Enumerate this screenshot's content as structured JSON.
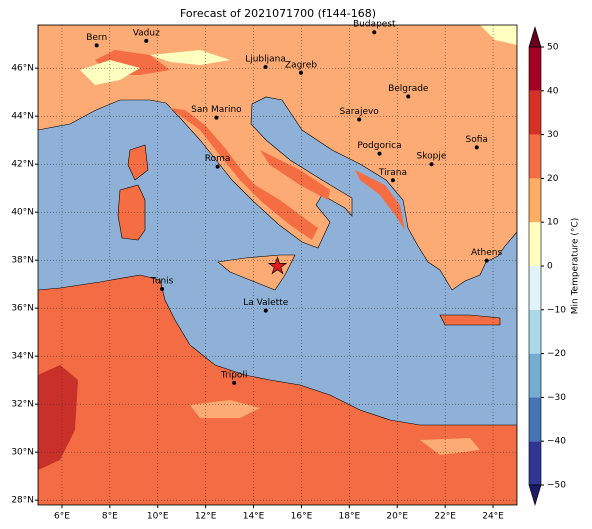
{
  "chart_data": {
    "type": "map",
    "title": "Forecast of 2021071700 (f144-168)",
    "xlim": [
      5,
      25
    ],
    "ylim": [
      27.8,
      47.8
    ],
    "xticks": [
      {
        "value": 6,
        "label": "6°E"
      },
      {
        "value": 8,
        "label": "8°E"
      },
      {
        "value": 10,
        "label": "10°E"
      },
      {
        "value": 12,
        "label": "12°E"
      },
      {
        "value": 14,
        "label": "14°E"
      },
      {
        "value": 16,
        "label": "16°E"
      },
      {
        "value": 18,
        "label": "18°E"
      },
      {
        "value": 20,
        "label": "20°E"
      },
      {
        "value": 22,
        "label": "22°E"
      },
      {
        "value": 24,
        "label": "24°E"
      }
    ],
    "yticks": [
      {
        "value": 28,
        "label": "28°N"
      },
      {
        "value": 30,
        "label": "30°N"
      },
      {
        "value": 32,
        "label": "32°N"
      },
      {
        "value": 34,
        "label": "34°N"
      },
      {
        "value": 36,
        "label": "36°N"
      },
      {
        "value": 38,
        "label": "38°N"
      },
      {
        "value": 40,
        "label": "40°N"
      },
      {
        "value": 42,
        "label": "42°N"
      },
      {
        "value": 44,
        "label": "44°N"
      },
      {
        "value": 46,
        "label": "46°N"
      }
    ],
    "grid": true,
    "cities": [
      {
        "name": "Bern",
        "lon": 7.45,
        "lat": 46.95
      },
      {
        "name": "Vaduz",
        "lon": 9.52,
        "lat": 47.14
      },
      {
        "name": "Budapest",
        "lon": 19.04,
        "lat": 47.5
      },
      {
        "name": "Ljubljana",
        "lon": 14.5,
        "lat": 46.05
      },
      {
        "name": "Zagreb",
        "lon": 15.98,
        "lat": 45.81
      },
      {
        "name": "Belgrade",
        "lon": 20.46,
        "lat": 44.82
      },
      {
        "name": "San Marino",
        "lon": 12.45,
        "lat": 43.94
      },
      {
        "name": "Sarajevo",
        "lon": 18.41,
        "lat": 43.86
      },
      {
        "name": "Sofia",
        "lon": 23.32,
        "lat": 42.7
      },
      {
        "name": "Roma",
        "lon": 12.5,
        "lat": 41.9
      },
      {
        "name": "Podgorica",
        "lon": 19.26,
        "lat": 42.44
      },
      {
        "name": "Skopje",
        "lon": 21.43,
        "lat": 42.0
      },
      {
        "name": "Tirana",
        "lon": 19.82,
        "lat": 41.33
      },
      {
        "name": "Athens",
        "lon": 23.73,
        "lat": 37.98
      },
      {
        "name": "Tunis",
        "lon": 10.18,
        "lat": 36.8
      },
      {
        "name": "La Valette",
        "lon": 14.51,
        "lat": 35.9
      },
      {
        "name": "Tripoli",
        "lon": 13.19,
        "lat": 32.89
      }
    ],
    "marker": {
      "lon": 15.0,
      "lat": 37.75,
      "color": "#e31a1c"
    },
    "colorbar": {
      "label": "Min Temperature (°C)",
      "lim": [
        -50,
        50
      ],
      "colors": [
        "#313695",
        "#4575b4",
        "#74add1",
        "#abd9e9",
        "#e0f3f8",
        "#ffffbf",
        "#fdae61",
        "#f46d43",
        "#d73027",
        "#a50026"
      ],
      "ticks": [
        {
          "value": -50,
          "label": "−50"
        },
        {
          "value": -40,
          "label": "−40"
        },
        {
          "value": -30,
          "label": "−30"
        },
        {
          "value": -20,
          "label": "−20"
        },
        {
          "value": -10,
          "label": "−10"
        },
        0,
        10,
        20,
        30,
        40,
        50
      ]
    }
  }
}
